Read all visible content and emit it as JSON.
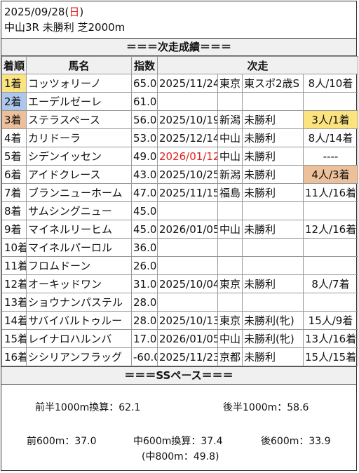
{
  "header": {
    "date": "2025/09/28",
    "dow_open": "(",
    "dow": "日",
    "dow_close": ")",
    "race": "中山3R 未勝利 芝2000m"
  },
  "section_next": "＝＝＝次走成績＝＝＝",
  "columns": [
    "着順",
    "馬名",
    "指数",
    "次走"
  ],
  "rows": [
    {
      "rank": "1着",
      "name": "コッツォリーノ",
      "idx": "65.0",
      "date": "2025/11/24",
      "place": "東京",
      "race": "東スポ2歳S",
      "result": "8人/10着"
    },
    {
      "rank": "2着",
      "name": "エーデルゼーレ",
      "idx": "61.0",
      "date": "",
      "place": "",
      "race": "",
      "result": ""
    },
    {
      "rank": "3着",
      "name": "ステラスペース",
      "idx": "56.0",
      "date": "2025/10/19",
      "place": "新潟",
      "race": "未勝利",
      "result": "3人/1着"
    },
    {
      "rank": "4着",
      "name": "カリドーラ",
      "idx": "53.0",
      "date": "2025/12/14",
      "place": "中山",
      "race": "未勝利",
      "result": "8人/14着"
    },
    {
      "rank": "5着",
      "name": "シデンイッセン",
      "idx": "49.0",
      "date": "2026/01/12",
      "place": "中山",
      "race": "未勝利",
      "result": "----"
    },
    {
      "rank": "6着",
      "name": "アイドクレース",
      "idx": "43.0",
      "date": "2025/10/25",
      "place": "新潟",
      "race": "未勝利",
      "result": "4人/3着"
    },
    {
      "rank": "7着",
      "name": "ブランニューホーム",
      "idx": "47.0",
      "date": "2025/11/15",
      "place": "福島",
      "race": "未勝利",
      "result": "11人/16着"
    },
    {
      "rank": "8着",
      "name": "サムシングニュー",
      "idx": "45.0",
      "date": "",
      "place": "",
      "race": "",
      "result": ""
    },
    {
      "rank": "9着",
      "name": "マイネルリーヒム",
      "idx": "45.0",
      "date": "2026/01/05",
      "place": "中山",
      "race": "未勝利",
      "result": "12人/16着"
    },
    {
      "rank": "10着",
      "name": "マイネルパーロル",
      "idx": "36.0",
      "date": "",
      "place": "",
      "race": "",
      "result": ""
    },
    {
      "rank": "11着",
      "name": "フロムドーン",
      "idx": "26.0",
      "date": "",
      "place": "",
      "race": "",
      "result": ""
    },
    {
      "rank": "12着",
      "name": "オーキッドワン",
      "idx": "31.0",
      "date": "2025/10/04",
      "place": "東京",
      "race": "未勝利",
      "result": "8人/7着"
    },
    {
      "rank": "13着",
      "name": "ショウナンパステル",
      "idx": "28.0",
      "date": "",
      "place": "",
      "race": "",
      "result": ""
    },
    {
      "rank": "14着",
      "name": "サバイバルトゥルー",
      "idx": "28.0",
      "date": "2025/10/13",
      "place": "東京",
      "race": "未勝利(牝)",
      "result": "15人/9着"
    },
    {
      "rank": "15着",
      "name": "レイナロハルンバ",
      "idx": "17.0",
      "date": "2026/01/05",
      "place": "中山",
      "race": "未勝利(牝)",
      "result": "13人/16着"
    },
    {
      "rank": "16着",
      "name": "シシリアンフラッグ",
      "idx": "-60.0",
      "date": "2025/11/23",
      "place": "京都",
      "race": "未勝利",
      "result": "15人/15着"
    }
  ],
  "highlights": {
    "gold": "#fbe380",
    "blue": "#adc8ec",
    "bronze": "#ecc09a",
    "red_text": "#e0201f"
  },
  "section_pace": "＝＝＝SSペース＝＝＝",
  "pace": {
    "first_half": "前半1000m換算：62.1",
    "second_half": "後半1000m：58.6",
    "first600": "前600m：37.0",
    "mid600": "中600m換算：37.4",
    "last600": "後600m：33.9",
    "mid800": "(中800m：49.8)"
  }
}
